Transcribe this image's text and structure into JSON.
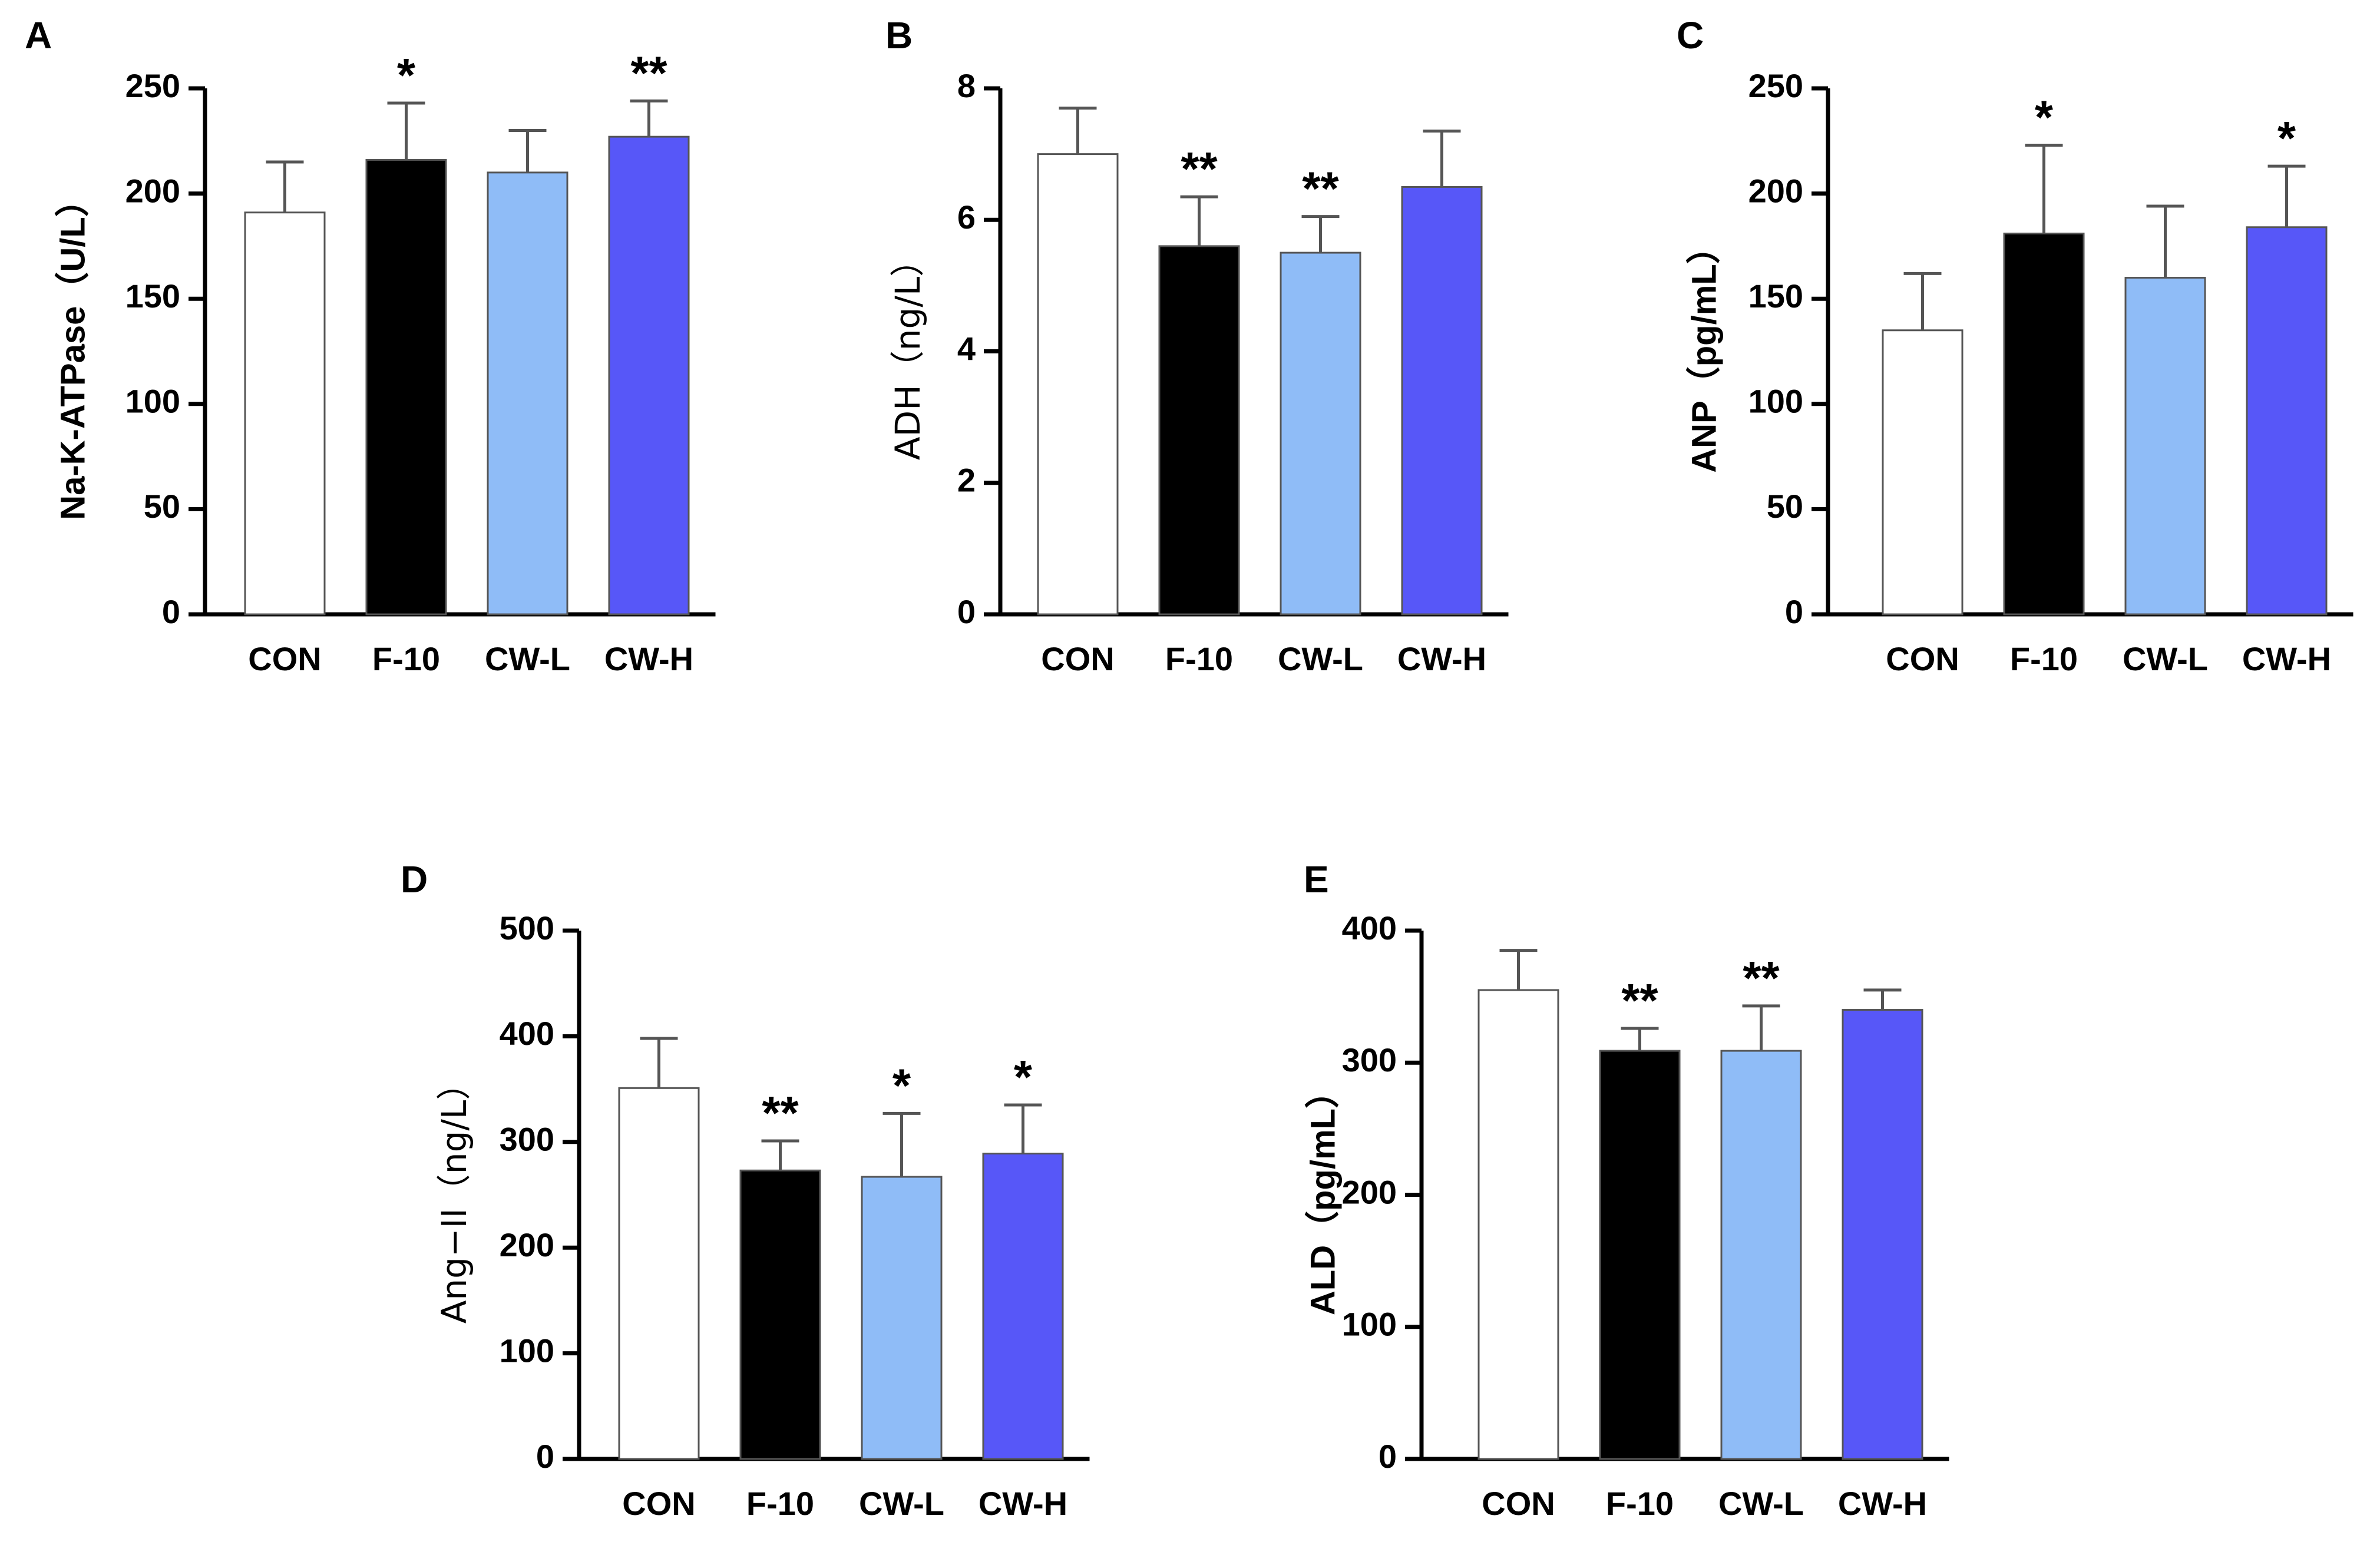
{
  "figure": {
    "panels": [
      "A",
      "B",
      "C",
      "D",
      "E"
    ]
  },
  "colors": {
    "CON": "#ffffff",
    "F-10": "#000000",
    "CW-L": "#8fbcf7",
    "CW-H": "#5757f8",
    "axis": "#000000",
    "bar_outline": "#555555"
  },
  "chart_data": [
    {
      "panel": "A",
      "type": "bar",
      "title": "",
      "ylabel": "Na-K-ATPase（U/L）",
      "xlabel": "",
      "categories": [
        "CON",
        "F-10",
        "CW-L",
        "CW-H"
      ],
      "values": [
        191,
        216,
        210,
        227
      ],
      "errors": [
        24,
        27,
        20,
        17
      ],
      "significance": [
        "",
        "*",
        "",
        "**"
      ],
      "ylim": [
        0,
        250
      ],
      "yticks": [
        0,
        50,
        100,
        150,
        200,
        250
      ],
      "ytick_labels": [
        "0",
        "50",
        "100",
        "150",
        "200",
        "250"
      ]
    },
    {
      "panel": "B",
      "type": "bar",
      "title": "",
      "ylabel": "ADH（ng/L）",
      "xlabel": "",
      "categories": [
        "CON",
        "F-10",
        "CW-L",
        "CW-H"
      ],
      "values": [
        7.0,
        5.6,
        5.5,
        6.5
      ],
      "errors": [
        0.7,
        0.75,
        0.55,
        0.85
      ],
      "significance": [
        "",
        "**",
        "**",
        ""
      ],
      "ylim": [
        0,
        8
      ],
      "yticks": [
        0,
        2,
        4,
        6,
        8
      ],
      "ytick_labels": [
        "0",
        "2",
        "4",
        "6",
        "8"
      ]
    },
    {
      "panel": "C",
      "type": "bar",
      "title": "",
      "ylabel": "ANP（pg/mL）",
      "xlabel": "",
      "categories": [
        "CON",
        "F-10",
        "CW-L",
        "CW-H"
      ],
      "values": [
        135,
        181,
        160,
        184
      ],
      "errors": [
        27,
        42,
        34,
        29
      ],
      "significance": [
        "",
        "*",
        "",
        "*"
      ],
      "ylim": [
        0,
        250
      ],
      "yticks": [
        0,
        50,
        100,
        150,
        200,
        250
      ],
      "ytick_labels": [
        "0",
        "50",
        "100",
        "150",
        "200",
        "250"
      ]
    },
    {
      "panel": "D",
      "type": "bar",
      "title": "",
      "ylabel": "Ang−II（ng/L）",
      "xlabel": "",
      "categories": [
        "CON",
        "F-10",
        "CW-L",
        "CW-H"
      ],
      "values": [
        351,
        273,
        267,
        289
      ],
      "errors": [
        47,
        28,
        60,
        46
      ],
      "significance": [
        "",
        "**",
        "*",
        "*"
      ],
      "ylim": [
        0,
        500
      ],
      "yticks": [
        0,
        100,
        200,
        300,
        400,
        500
      ],
      "ytick_labels": [
        "0",
        "100",
        "200",
        "300",
        "400",
        "500"
      ]
    },
    {
      "panel": "E",
      "type": "bar",
      "title": "",
      "ylabel": "ALD（pg/mL）",
      "xlabel": "",
      "categories": [
        "CON",
        "F-10",
        "CW-L",
        "CW-H"
      ],
      "values": [
        355,
        309,
        309,
        340
      ],
      "errors": [
        30,
        17,
        34,
        15
      ],
      "significance": [
        "",
        "**",
        "**",
        ""
      ],
      "ylim": [
        0,
        400
      ],
      "yticks": [
        0,
        100,
        200,
        300,
        400
      ],
      "ytick_labels": [
        "0",
        "100",
        "200",
        "300",
        "400"
      ]
    }
  ]
}
